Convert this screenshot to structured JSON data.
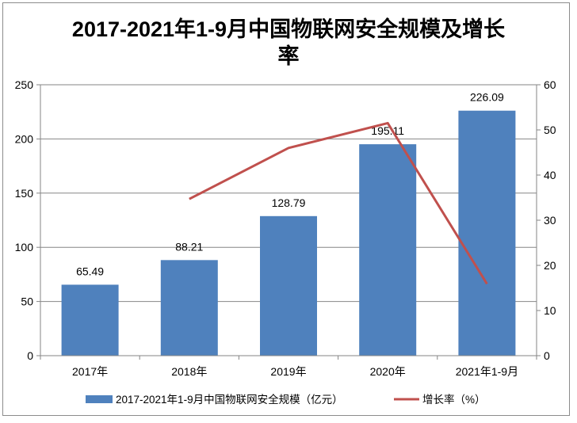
{
  "chart_data": {
    "type": "bar",
    "title": "2017-2021年1-9月中国物联网安全规模及增长率",
    "categories": [
      "2017年",
      "2018年",
      "2019年",
      "2020年",
      "2021年1-9月"
    ],
    "series": [
      {
        "name": "2017-2021年1-9月中国物联网安全规模（亿元）",
        "type": "bar",
        "axis": "left",
        "color": "#4f81bd",
        "values": [
          65.49,
          88.21,
          128.79,
          195.11,
          226.09
        ],
        "labels": [
          "65.49",
          "88.21",
          "128.79",
          "195.11",
          "226.09"
        ]
      },
      {
        "name": "增长率（%）",
        "type": "line",
        "axis": "right",
        "color": "#c0504d",
        "values": [
          null,
          34.7,
          46.0,
          51.5,
          15.9
        ]
      }
    ],
    "ylim": [
      0,
      250
    ],
    "yticks": [
      "0",
      "50",
      "100",
      "150",
      "200",
      "250"
    ],
    "y2lim": [
      0,
      60
    ],
    "y2ticks": [
      "0",
      "10",
      "20",
      "30",
      "40",
      "50",
      "60"
    ],
    "grid": true,
    "legend": "bottom"
  }
}
